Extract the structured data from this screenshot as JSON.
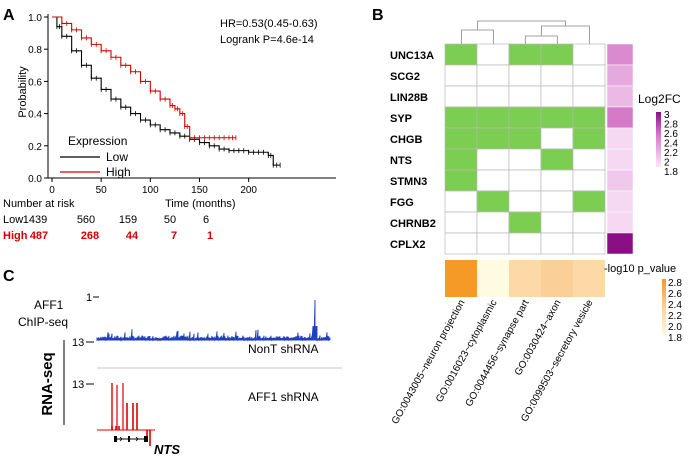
{
  "panels": {
    "a": "A",
    "b": "B",
    "c": "C"
  },
  "chart_data": [
    {
      "type": "line",
      "title": "",
      "xlabel": "Time (months)",
      "ylabel": "Probability",
      "xlim": [
        0,
        240
      ],
      "ylim": [
        0,
        1.0
      ],
      "x_ticks": [
        "0",
        "50",
        "100",
        "150",
        "200"
      ],
      "y_ticks": [
        "0.0",
        "0.2",
        "0.4",
        "0.6",
        "0.8",
        "1.0"
      ],
      "stats": [
        "HR=0.53(0.45-0.63)",
        "Logrank P=4.6e-14"
      ],
      "legend_title": "Expression",
      "series": [
        {
          "name": "Low",
          "color": "#000000",
          "x": [
            0,
            5,
            10,
            20,
            30,
            40,
            50,
            60,
            70,
            80,
            90,
            100,
            110,
            120,
            130,
            140,
            150,
            160,
            170,
            180,
            190,
            200,
            210,
            220,
            225,
            232
          ],
          "y": [
            1.0,
            0.94,
            0.88,
            0.79,
            0.7,
            0.62,
            0.55,
            0.49,
            0.44,
            0.4,
            0.36,
            0.33,
            0.3,
            0.28,
            0.26,
            0.24,
            0.22,
            0.2,
            0.18,
            0.17,
            0.17,
            0.16,
            0.16,
            0.14,
            0.08,
            0.08
          ]
        },
        {
          "name": "High",
          "color": "#d40000",
          "x": [
            0,
            10,
            20,
            30,
            40,
            50,
            60,
            70,
            80,
            90,
            100,
            110,
            120,
            125,
            130,
            135,
            140,
            150,
            160,
            170,
            180,
            187
          ],
          "y": [
            1.0,
            0.96,
            0.92,
            0.87,
            0.83,
            0.79,
            0.75,
            0.7,
            0.66,
            0.6,
            0.54,
            0.49,
            0.45,
            0.43,
            0.4,
            0.32,
            0.25,
            0.25,
            0.25,
            0.25,
            0.25,
            0.25
          ]
        }
      ],
      "risk_table": {
        "title": "Number at risk",
        "rows": [
          {
            "label": "Low",
            "values": [
              "1439",
              "560",
              "159",
              "50",
              "6"
            ],
            "color": "#000000"
          },
          {
            "label": "High",
            "values": [
              "487",
              "268",
              "44",
              "7",
              "1"
            ],
            "color": "#d40000"
          }
        ]
      }
    },
    {
      "type": "heatmap",
      "genes": [
        "UNC13A",
        "SCG2",
        "LIN28B",
        "SYP",
        "CHGB",
        "NTS",
        "STMN3",
        "FGG",
        "CHRNB2",
        "CPLX2"
      ],
      "terms": [
        "GO:0043005~neuron projection",
        "GO:0016023~cytoplasmic",
        "GO:0044456~synapse part",
        "GO:0030424~axon",
        "GO:0099503~secretory vesicle"
      ],
      "membership": [
        [
          1,
          0,
          1,
          1,
          0
        ],
        [
          0,
          0,
          0,
          0,
          0
        ],
        [
          0,
          0,
          0,
          0,
          0
        ],
        [
          1,
          1,
          1,
          1,
          1
        ],
        [
          1,
          1,
          1,
          0,
          1
        ],
        [
          1,
          0,
          0,
          1,
          0
        ],
        [
          1,
          0,
          0,
          0,
          0
        ],
        [
          0,
          1,
          0,
          0,
          1
        ],
        [
          0,
          0,
          1,
          0,
          0
        ],
        [
          0,
          0,
          0,
          0,
          0
        ]
      ],
      "member_color": "#7cce52",
      "log2fc": [
        2.4,
        2.2,
        2.1,
        2.5,
        1.9,
        1.9,
        2.0,
        1.9,
        1.9,
        3.0
      ],
      "log2fc_legend": {
        "title": "Log2FC",
        "ticks": [
          "3",
          "2.8",
          "2.6",
          "2.4",
          "2.2",
          "2",
          "1.8"
        ]
      },
      "pvalues": [
        2.8,
        1.8,
        2.2,
        2.3,
        2.2
      ],
      "pvalue_legend": {
        "title": "-log10 p_value",
        "ticks": [
          "2.8",
          "2.6",
          "2.4",
          "2.2",
          "2.0",
          "1.8"
        ]
      }
    }
  ],
  "tracks": {
    "chip_label_line1": "AFF1",
    "chip_label_line2": "ChIP-seq",
    "chip_scale": "1",
    "rnaseq_label": "RNA-seq",
    "scale_top": "13",
    "scale_bottom": "13",
    "track1_name": "NonT shRNA",
    "track2_name": "AFF1 shRNA",
    "gene_name": "NTS"
  }
}
